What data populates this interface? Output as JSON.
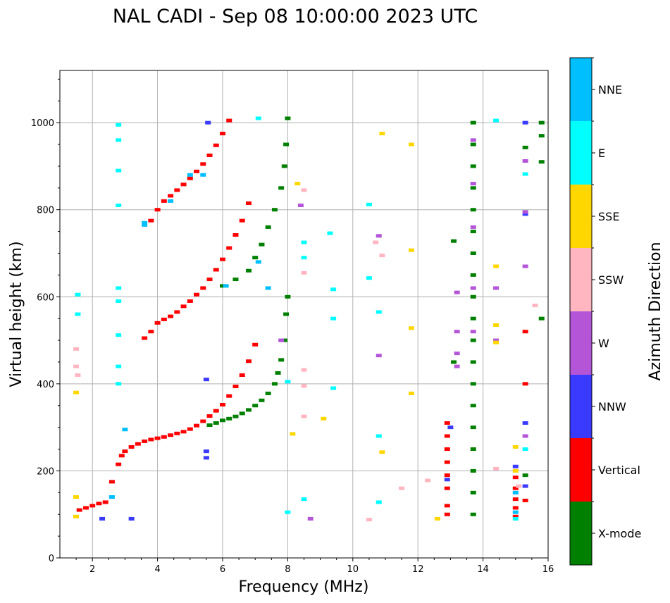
{
  "chart_data": {
    "type": "scatter",
    "title": "NAL CADI - Sep 08 10:00:00 2023 UTC",
    "xlabel": "Frequency (MHz)",
    "ylabel": "Virtual height (km)",
    "xlim": [
      1,
      16
    ],
    "ylim": [
      0,
      1120
    ],
    "xticks": [
      2,
      4,
      6,
      8,
      10,
      12,
      14,
      16
    ],
    "yticks": [
      0,
      200,
      400,
      600,
      800,
      1000
    ],
    "grid": true,
    "colorbar": {
      "label": "Azimuth Direction",
      "categories": [
        {
          "name": "X-mode",
          "color": "#008000"
        },
        {
          "name": "Vertical",
          "color": "#ff0000"
        },
        {
          "name": "NNW",
          "color": "#3a3aff"
        },
        {
          "name": "W",
          "color": "#b455d8"
        },
        {
          "name": "SSW",
          "color": "#ffb6c1"
        },
        {
          "name": "SSE",
          "color": "#ffd700"
        },
        {
          "name": "E",
          "color": "#00ffff"
        },
        {
          "name": "NNE",
          "color": "#00bfff"
        }
      ]
    },
    "series": [
      {
        "name": "Vertical",
        "points": [
          [
            1.6,
            110
          ],
          [
            1.8,
            115
          ],
          [
            2.0,
            120
          ],
          [
            2.2,
            125
          ],
          [
            2.4,
            128
          ],
          [
            2.6,
            175
          ],
          [
            2.8,
            215
          ],
          [
            2.9,
            235
          ],
          [
            3.0,
            245
          ],
          [
            3.2,
            255
          ],
          [
            3.4,
            262
          ],
          [
            3.6,
            268
          ],
          [
            3.8,
            272
          ],
          [
            4.0,
            275
          ],
          [
            4.2,
            278
          ],
          [
            4.4,
            282
          ],
          [
            4.6,
            286
          ],
          [
            4.8,
            290
          ],
          [
            5.0,
            296
          ],
          [
            5.2,
            304
          ],
          [
            5.4,
            314
          ],
          [
            5.6,
            326
          ],
          [
            5.8,
            338
          ],
          [
            6.0,
            352
          ],
          [
            6.2,
            372
          ],
          [
            6.4,
            394
          ],
          [
            6.6,
            420
          ],
          [
            6.8,
            452
          ],
          [
            7.0,
            490
          ],
          [
            3.6,
            505
          ],
          [
            3.8,
            520
          ],
          [
            4.0,
            540
          ],
          [
            4.2,
            548
          ],
          [
            4.4,
            555
          ],
          [
            4.6,
            565
          ],
          [
            4.8,
            578
          ],
          [
            5.0,
            590
          ],
          [
            5.2,
            605
          ],
          [
            5.4,
            620
          ],
          [
            5.6,
            640
          ],
          [
            5.8,
            662
          ],
          [
            6.0,
            686
          ],
          [
            6.2,
            712
          ],
          [
            6.4,
            742
          ],
          [
            6.6,
            775
          ],
          [
            6.8,
            815
          ],
          [
            3.8,
            775
          ],
          [
            4.0,
            800
          ],
          [
            4.2,
            820
          ],
          [
            4.4,
            832
          ],
          [
            4.6,
            845
          ],
          [
            4.8,
            858
          ],
          [
            5.0,
            872
          ],
          [
            5.2,
            888
          ],
          [
            5.4,
            905
          ],
          [
            5.6,
            925
          ],
          [
            5.8,
            948
          ],
          [
            6.0,
            975
          ],
          [
            6.2,
            1005
          ],
          [
            12.9,
            100
          ],
          [
            12.9,
            120
          ],
          [
            12.9,
            160
          ],
          [
            12.9,
            190
          ],
          [
            12.9,
            220
          ],
          [
            12.9,
            250
          ],
          [
            12.9,
            280
          ],
          [
            12.9,
            310
          ],
          [
            15.0,
            95
          ],
          [
            15.0,
            115
          ],
          [
            15.0,
            135
          ],
          [
            15.0,
            160
          ],
          [
            15.0,
            185
          ],
          [
            15.3,
            520
          ],
          [
            15.3,
            400
          ],
          [
            15.3,
            132
          ]
        ]
      },
      {
        "name": "X-mode",
        "points": [
          [
            5.6,
            305
          ],
          [
            5.8,
            310
          ],
          [
            6.0,
            316
          ],
          [
            6.2,
            320
          ],
          [
            6.4,
            325
          ],
          [
            6.6,
            332
          ],
          [
            6.8,
            340
          ],
          [
            7.0,
            350
          ],
          [
            7.2,
            362
          ],
          [
            7.4,
            378
          ],
          [
            7.6,
            400
          ],
          [
            7.7,
            425
          ],
          [
            7.8,
            455
          ],
          [
            7.9,
            500
          ],
          [
            7.95,
            560
          ],
          [
            8.0,
            600
          ],
          [
            6.0,
            625
          ],
          [
            6.4,
            640
          ],
          [
            6.8,
            660
          ],
          [
            7.0,
            690
          ],
          [
            7.2,
            720
          ],
          [
            7.4,
            760
          ],
          [
            7.6,
            800
          ],
          [
            7.8,
            850
          ],
          [
            7.9,
            900
          ],
          [
            7.95,
            950
          ],
          [
            8.0,
            1010
          ],
          [
            13.7,
            100
          ],
          [
            13.7,
            150
          ],
          [
            13.7,
            200
          ],
          [
            13.7,
            250
          ],
          [
            13.7,
            300
          ],
          [
            13.7,
            350
          ],
          [
            13.7,
            400
          ],
          [
            13.7,
            450
          ],
          [
            13.7,
            500
          ],
          [
            13.7,
            550
          ],
          [
            13.7,
            600
          ],
          [
            13.7,
            650
          ],
          [
            13.7,
            700
          ],
          [
            13.7,
            750
          ],
          [
            13.7,
            800
          ],
          [
            13.7,
            850
          ],
          [
            13.7,
            900
          ],
          [
            13.7,
            950
          ],
          [
            13.7,
            1000
          ],
          [
            13.1,
            450
          ],
          [
            15.3,
            190
          ],
          [
            15.3,
            943
          ],
          [
            15.8,
            1000
          ],
          [
            15.8,
            970
          ],
          [
            15.8,
            910
          ],
          [
            15.8,
            550
          ],
          [
            13.1,
            728
          ]
        ]
      },
      {
        "name": "NNW",
        "points": [
          [
            5.55,
            1000
          ],
          [
            5.5,
            410
          ],
          [
            5.5,
            245
          ],
          [
            5.5,
            230
          ],
          [
            13.0,
            300
          ],
          [
            12.9,
            180
          ],
          [
            15.0,
            210
          ],
          [
            15.3,
            310
          ],
          [
            15.3,
            165
          ],
          [
            15.3,
            790
          ],
          [
            15.3,
            1000
          ],
          [
            2.3,
            90
          ],
          [
            3.2,
            90
          ]
        ]
      },
      {
        "name": "W",
        "points": [
          [
            13.2,
            610
          ],
          [
            13.2,
            520
          ],
          [
            13.2,
            470
          ],
          [
            13.2,
            440
          ],
          [
            13.7,
            520
          ],
          [
            13.7,
            620
          ],
          [
            13.7,
            760
          ],
          [
            13.7,
            860
          ],
          [
            13.7,
            960
          ],
          [
            15.3,
            795
          ],
          [
            15.3,
            912
          ],
          [
            15.3,
            670
          ],
          [
            15.3,
            280
          ],
          [
            14.4,
            620
          ],
          [
            14.4,
            500
          ],
          [
            10.8,
            740
          ],
          [
            10.8,
            465
          ],
          [
            8.7,
            90
          ],
          [
            8.4,
            810
          ],
          [
            7.8,
            500
          ]
        ]
      },
      {
        "name": "SSW",
        "points": [
          [
            1.5,
            480
          ],
          [
            1.5,
            440
          ],
          [
            1.55,
            420
          ],
          [
            12.3,
            178
          ],
          [
            11.5,
            160
          ],
          [
            10.5,
            88
          ],
          [
            14.4,
            205
          ],
          [
            15.6,
            580
          ],
          [
            15.1,
            165
          ],
          [
            8.5,
            845
          ],
          [
            8.5,
            655
          ],
          [
            8.5,
            432
          ],
          [
            8.5,
            395
          ],
          [
            8.5,
            325
          ],
          [
            10.9,
            695
          ],
          [
            10.7,
            725
          ]
        ]
      },
      {
        "name": "SSE",
        "points": [
          [
            1.5,
            95
          ],
          [
            1.5,
            140
          ],
          [
            1.5,
            380
          ],
          [
            8.3,
            860
          ],
          [
            8.15,
            285
          ],
          [
            9.1,
            320
          ],
          [
            10.9,
            975
          ],
          [
            11.8,
            950
          ],
          [
            11.8,
            707
          ],
          [
            11.8,
            528
          ],
          [
            11.8,
            378
          ],
          [
            10.9,
            243
          ],
          [
            12.6,
            90
          ],
          [
            14.4,
            670
          ],
          [
            14.4,
            535
          ],
          [
            14.4,
            495
          ],
          [
            15.0,
            255
          ],
          [
            15.0,
            200
          ]
        ]
      },
      {
        "name": "E",
        "points": [
          [
            1.55,
            605
          ],
          [
            1.55,
            560
          ],
          [
            2.8,
            995
          ],
          [
            2.8,
            960
          ],
          [
            2.8,
            890
          ],
          [
            2.8,
            810
          ],
          [
            2.8,
            620
          ],
          [
            2.8,
            590
          ],
          [
            2.8,
            512
          ],
          [
            2.8,
            440
          ],
          [
            2.8,
            400
          ],
          [
            7.1,
            1010
          ],
          [
            8.0,
            405
          ],
          [
            8.0,
            105
          ],
          [
            8.5,
            725
          ],
          [
            8.5,
            690
          ],
          [
            8.5,
            135
          ],
          [
            9.3,
            746
          ],
          [
            9.4,
            617
          ],
          [
            9.4,
            550
          ],
          [
            9.4,
            390
          ],
          [
            10.5,
            812
          ],
          [
            10.5,
            643
          ],
          [
            10.8,
            565
          ],
          [
            10.8,
            280
          ],
          [
            10.8,
            128
          ],
          [
            14.4,
            1005
          ],
          [
            15.3,
            882
          ],
          [
            15.3,
            250
          ],
          [
            15.0,
            90
          ]
        ]
      },
      {
        "name": "NNE",
        "points": [
          [
            3.6,
            770
          ],
          [
            3.6,
            765
          ],
          [
            4.4,
            820
          ],
          [
            5.0,
            880
          ],
          [
            5.4,
            880
          ],
          [
            6.1,
            625
          ],
          [
            7.1,
            680
          ],
          [
            7.4,
            620
          ],
          [
            3.0,
            295
          ],
          [
            2.6,
            140
          ],
          [
            15.0,
            150
          ],
          [
            15.0,
            105
          ]
        ]
      }
    ]
  }
}
